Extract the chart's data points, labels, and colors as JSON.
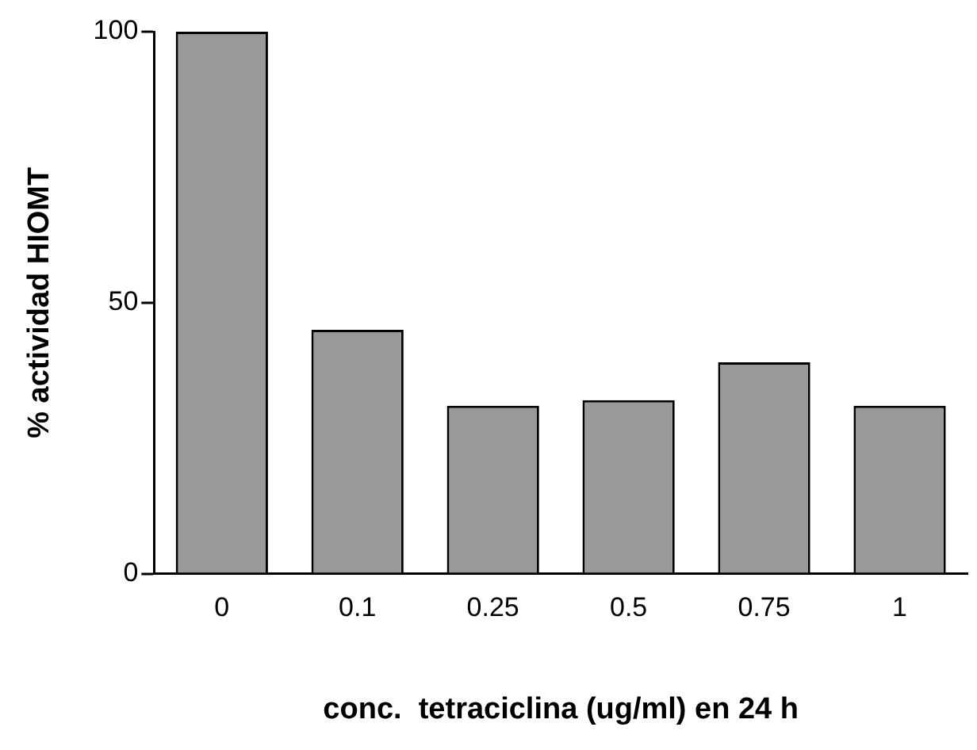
{
  "chart_data": {
    "type": "bar",
    "xlabel": "conc.  tetraciclina (ug/ml) en 24 h",
    "ylabel": "% actividad HIOMT",
    "categories": [
      "0",
      "0.1",
      "0.25",
      "0.5",
      "0.75",
      "1"
    ],
    "values": [
      100,
      45,
      31,
      32,
      39,
      31
    ],
    "color": "#999999",
    "ylim": [
      0,
      100
    ],
    "yticks": [
      0,
      50,
      100
    ],
    "grid": false
  }
}
